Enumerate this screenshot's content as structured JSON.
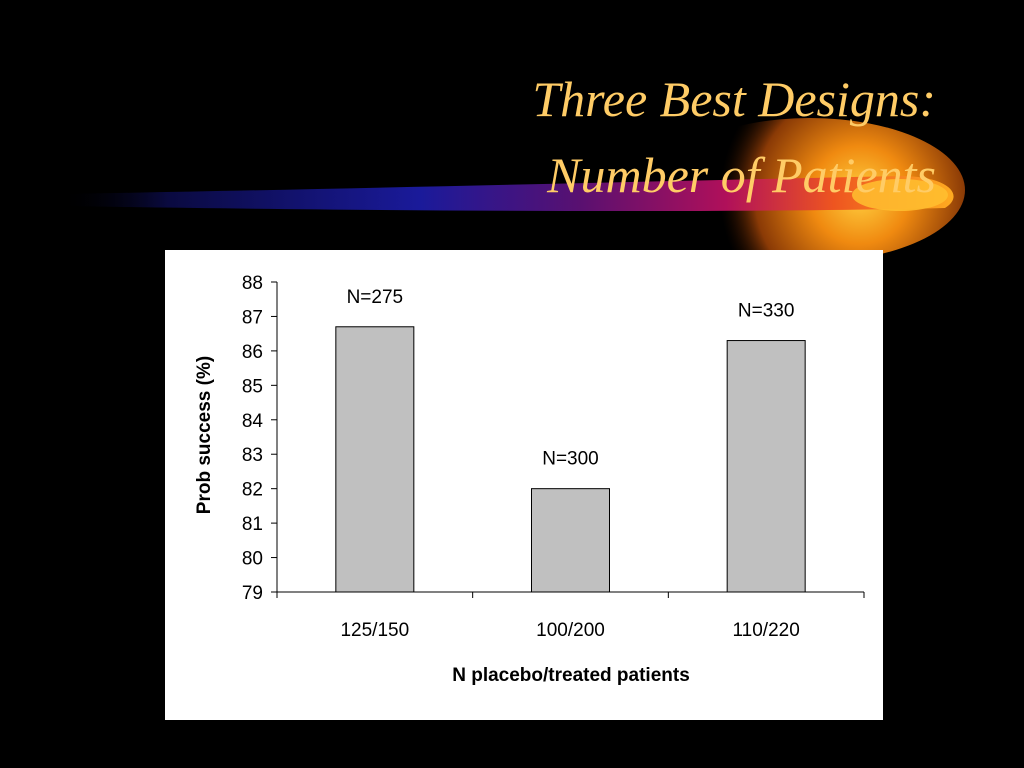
{
  "slide": {
    "title_line_1": "Three Best Designs:",
    "title_line_2": "Number of Patients"
  },
  "colors": {
    "background": "#000000",
    "title": "#FFCC66",
    "bar_fill": "#C0C0C0",
    "bar_stroke": "#000000",
    "panel": "#FFFFFF"
  },
  "chart_data": {
    "type": "bar",
    "title": "",
    "xlabel": "N placebo/treated patients",
    "ylabel": "Prob success (%)",
    "categories": [
      "125/150",
      "100/200",
      "110/220"
    ],
    "values": [
      86.7,
      82.0,
      86.3
    ],
    "data_labels": [
      "N=275",
      "N=300",
      "N=330"
    ],
    "ylim": [
      79,
      88
    ],
    "yticks": [
      79,
      80,
      81,
      82,
      83,
      84,
      85,
      86,
      87,
      88
    ],
    "grid": false,
    "legend": "none"
  }
}
